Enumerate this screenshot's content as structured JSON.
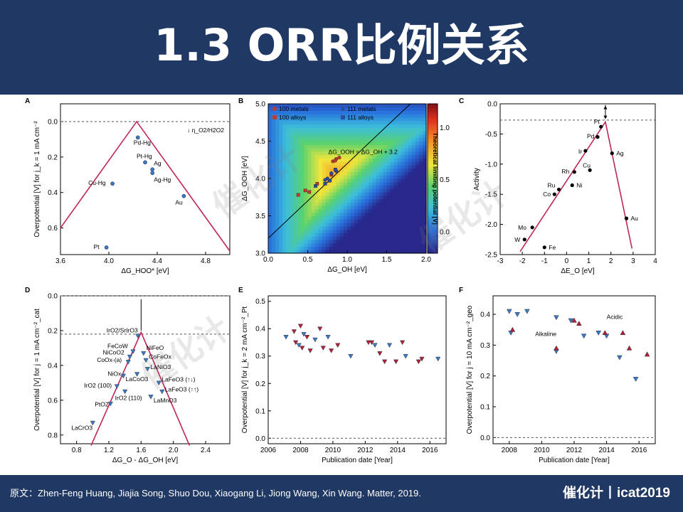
{
  "slide": {
    "title": "1.3 ORR比例关系",
    "footer_source": "原文：Zhen-Feng Huang, Jiajia Song, Shuo Dou, Xiaogang Li, Jiong Wang, Xin Wang. Matter, 2019.",
    "footer_brand": "催化计丨icat2019",
    "watermark": "催化计",
    "colors": {
      "header_bg": "#1f3864",
      "volcano_line": "#c0245a",
      "marker_blue": "#3a78c9",
      "marker_red": "#b0203a"
    }
  },
  "chart_data": [
    {
      "panel": "A",
      "type": "scatter",
      "xlabel": "ΔG_HOO* [eV]",
      "ylabel": "Overpotential [V] for j_k = 1 mA cm⁻²",
      "xlim": [
        3.6,
        5.0
      ],
      "ylim": [
        0.75,
        -0.1
      ],
      "y_inverted": true,
      "xticks": [
        "3.6",
        "4.0",
        "4.4",
        "4.8"
      ],
      "yticks": [
        "0.0",
        "0.2",
        "0.4",
        "0.6"
      ],
      "volcano": [
        [
          3.6,
          0.6
        ],
        [
          4.23,
          0.0
        ],
        [
          5.0,
          0.73
        ]
      ],
      "dashed_y": 0.0,
      "arrow_label": "η_O2/H2O2",
      "points": [
        {
          "label": "Pd-Hg",
          "x": 4.24,
          "y": 0.09
        },
        {
          "label": "Pt-Hg",
          "x": 4.3,
          "y": 0.23
        },
        {
          "label": "Ag",
          "x": 4.36,
          "y": 0.27
        },
        {
          "label": "Ag-Hg",
          "x": 4.36,
          "y": 0.29
        },
        {
          "label": "Cu-Hg",
          "x": 4.03,
          "y": 0.35
        },
        {
          "label": "Au",
          "x": 4.62,
          "y": 0.42
        },
        {
          "label": "Pt",
          "x": 3.98,
          "y": 0.71
        }
      ]
    },
    {
      "panel": "B",
      "type": "heatmap",
      "xlabel": "ΔG_OH [eV]",
      "ylabel": "ΔG_OOH [eV]",
      "xlim": [
        0.0,
        2.0
      ],
      "ylim": [
        3.0,
        5.0
      ],
      "xticks": [
        "0.0",
        "0.5",
        "1.0",
        "1.5",
        "2.0"
      ],
      "yticks": [
        "3.0",
        "3.5",
        "4.0",
        "4.5",
        "5.0"
      ],
      "colorbar_label": "Theoretical limiting potential [V]",
      "colorbar_range": [
        -0.2,
        1.23
      ],
      "colorbar_ticks": [
        "0.0",
        "0.5",
        "1.0"
      ],
      "scaling_line_label": "ΔG_OOH = ΔG_OH + 3.2",
      "scaling_intercept": 3.2,
      "legend": [
        {
          "name": "100 metals",
          "shape": "circle",
          "color": "#c0392b"
        },
        {
          "name": "100 alloys",
          "shape": "square",
          "color": "#c0392b"
        },
        {
          "name": "111 metals",
          "shape": "circle",
          "color": "#2c4ea0"
        },
        {
          "name": "111 alloys",
          "shape": "square",
          "color": "#2c4ea0"
        }
      ],
      "series": [
        {
          "name": "100 metals",
          "points": [
            [
              0.82,
              4.23
            ],
            [
              0.86,
              4.26
            ],
            [
              0.9,
              4.28
            ],
            [
              0.85,
              4.24
            ]
          ]
        },
        {
          "name": "100 alloys",
          "points": [
            [
              0.38,
              3.78
            ],
            [
              0.47,
              3.84
            ],
            [
              0.52,
              3.82
            ],
            [
              0.62,
              3.93
            ],
            [
              0.8,
              4.05
            ]
          ]
        },
        {
          "name": "111 metals",
          "points": [
            [
              0.75,
              4.0
            ],
            [
              0.8,
              4.07
            ],
            [
              0.86,
              4.1
            ],
            [
              0.72,
              3.98
            ]
          ]
        },
        {
          "name": "111 alloys",
          "points": [
            [
              0.6,
              3.9
            ],
            [
              0.72,
              3.93
            ],
            [
              0.78,
              3.97
            ],
            [
              0.85,
              4.12
            ]
          ]
        }
      ]
    },
    {
      "panel": "C",
      "type": "scatter",
      "xlabel": "ΔE_O [eV]",
      "ylabel": "Activity",
      "xlim": [
        -3,
        4
      ],
      "ylim": [
        -2.5,
        0.0
      ],
      "xticks": [
        "-3",
        "-2",
        "-1",
        "0",
        "1",
        "2",
        "3",
        "4"
      ],
      "yticks": [
        "0.0",
        "-0.5",
        "-1.0",
        "-1.5",
        "-2.0",
        "-2.5"
      ],
      "volcano": [
        [
          -2.1,
          -2.45
        ],
        [
          1.75,
          -0.3
        ],
        [
          2.95,
          -2.4
        ]
      ],
      "dashed_y": -0.27,
      "points": [
        {
          "label": "Pt",
          "x": 1.55,
          "y": -0.38
        },
        {
          "label": "Pd",
          "x": 1.4,
          "y": -0.55
        },
        {
          "label": "Ir",
          "x": 0.85,
          "y": -0.78
        },
        {
          "label": "Ag",
          "x": 2.05,
          "y": -0.82
        },
        {
          "label": "Cu",
          "x": 1.05,
          "y": -1.1
        },
        {
          "label": "Rh",
          "x": 0.35,
          "y": -1.13
        },
        {
          "label": "Ni",
          "x": 0.25,
          "y": -1.35
        },
        {
          "label": "Ru",
          "x": -0.35,
          "y": -1.42
        },
        {
          "label": "Co",
          "x": -0.55,
          "y": -1.5
        },
        {
          "label": "Au",
          "x": 2.7,
          "y": -1.9
        },
        {
          "label": "Mo",
          "x": -1.55,
          "y": -2.05
        },
        {
          "label": "W",
          "x": -1.9,
          "y": -2.25
        },
        {
          "label": "Fe",
          "x": -1.0,
          "y": -2.38
        }
      ]
    },
    {
      "panel": "D",
      "type": "scatter",
      "xlabel": "ΔG_O - ΔG_OH [eV]",
      "ylabel": "Overpotential [V] for j = 1 mA cm⁻²_cat",
      "xlim": [
        0.6,
        2.7
      ],
      "ylim": [
        0.85,
        0.0
      ],
      "y_inverted": true,
      "xticks": [
        "0.8",
        "1.2",
        "1.6",
        "2.0",
        "2.4"
      ],
      "yticks": [
        "0.0",
        "0.2",
        "0.4",
        "0.6",
        "0.8"
      ],
      "volcano": [
        [
          0.98,
          0.86
        ],
        [
          1.6,
          0.21
        ],
        [
          2.2,
          0.86
        ]
      ],
      "dashed_y": [
        0.0,
        0.22
      ],
      "points": [
        {
          "label": "IrO2/SrIrO3",
          "x": 1.56,
          "y": 0.23
        },
        {
          "label": "FeCoW",
          "x": 1.5,
          "y": 0.32
        },
        {
          "label": "NiCoO2",
          "x": 1.46,
          "y": 0.35
        },
        {
          "label": "CoOx-(a)",
          "x": 1.44,
          "y": 0.38
        },
        {
          "label": "NiFeO",
          "x": 1.63,
          "y": 0.33
        },
        {
          "label": "CoFeOx",
          "x": 1.66,
          "y": 0.37
        },
        {
          "label": "LaNiO3",
          "x": 1.68,
          "y": 0.42
        },
        {
          "label": "NiOx",
          "x": 1.38,
          "y": 0.46
        },
        {
          "label": "LaCoO3",
          "x": 1.55,
          "y": 0.45
        },
        {
          "label": "LaFeO3 (↑↓)",
          "x": 1.82,
          "y": 0.5
        },
        {
          "label": "IrO2 (100)",
          "x": 1.3,
          "y": 0.52
        },
        {
          "label": "LaFeO3 (↑↑)",
          "x": 1.86,
          "y": 0.55
        },
        {
          "label": "IrO2 (110)",
          "x": 1.4,
          "y": 0.55
        },
        {
          "label": "LaMnO3",
          "x": 1.72,
          "y": 0.58
        },
        {
          "label": "PtO2",
          "x": 1.22,
          "y": 0.62
        },
        {
          "label": "LaCrO3",
          "x": 1.0,
          "y": 0.73
        }
      ]
    },
    {
      "panel": "E",
      "type": "scatter",
      "xlabel": "Publication date [Year]",
      "ylabel": "Overpotential [V] for j_k = 2 mA cm⁻²_Pt",
      "xlim": [
        2006,
        2017
      ],
      "ylim": [
        -0.02,
        0.52
      ],
      "xticks": [
        "2006",
        "2008",
        "2010",
        "2012",
        "2014",
        "2016"
      ],
      "yticks": [
        "0.0",
        "0.1",
        "0.2",
        "0.3",
        "0.4",
        "0.5"
      ],
      "dashed_y": 0.0,
      "points": [
        [
          2007.1,
          0.37
        ],
        [
          2007.6,
          0.39
        ],
        [
          2007.7,
          0.35
        ],
        [
          2007.9,
          0.34
        ],
        [
          2008.0,
          0.41
        ],
        [
          2008.1,
          0.33
        ],
        [
          2008.2,
          0.38
        ],
        [
          2008.4,
          0.37
        ],
        [
          2008.6,
          0.32
        ],
        [
          2008.9,
          0.36
        ],
        [
          2009.2,
          0.4
        ],
        [
          2009.4,
          0.33
        ],
        [
          2009.7,
          0.37
        ],
        [
          2009.9,
          0.32
        ],
        [
          2010.3,
          0.34
        ],
        [
          2011.1,
          0.3
        ],
        [
          2012.2,
          0.35
        ],
        [
          2012.4,
          0.35
        ],
        [
          2012.6,
          0.34
        ],
        [
          2012.9,
          0.31
        ],
        [
          2013.2,
          0.28
        ],
        [
          2013.5,
          0.34
        ],
        [
          2013.9,
          0.28
        ],
        [
          2014.3,
          0.35
        ],
        [
          2014.5,
          0.3
        ],
        [
          2015.3,
          0.28
        ],
        [
          2015.5,
          0.29
        ],
        [
          2016.5,
          0.29
        ]
      ]
    },
    {
      "panel": "F",
      "type": "scatter",
      "xlabel": "Publication date [Year]",
      "ylabel": "Overpotential [V] for j = 10 mA cm⁻²_geo",
      "xlim": [
        2007,
        2017
      ],
      "ylim": [
        -0.02,
        0.46
      ],
      "xticks": [
        "2008",
        "2010",
        "2012",
        "2014",
        "2016"
      ],
      "yticks": [
        "0.0",
        "0.1",
        "0.2",
        "0.3",
        "0.4"
      ],
      "dashed_y": 0.0,
      "series": [
        {
          "name": "Alkaline",
          "color": "#3a78c9",
          "points": [
            [
              2008.0,
              0.41
            ],
            [
              2008.1,
              0.34
            ],
            [
              2008.5,
              0.4
            ],
            [
              2009.1,
              0.41
            ],
            [
              2010.9,
              0.39
            ],
            [
              2010.9,
              0.28
            ],
            [
              2011.8,
              0.38
            ],
            [
              2012.6,
              0.33
            ],
            [
              2013.5,
              0.34
            ],
            [
              2014.0,
              0.33
            ],
            [
              2014.8,
              0.26
            ],
            [
              2015.8,
              0.19
            ]
          ]
        },
        {
          "name": "Acidic",
          "color": "#b0203a",
          "points": [
            [
              2008.2,
              0.35
            ],
            [
              2010.9,
              0.29
            ],
            [
              2012.3,
              0.37
            ],
            [
              2013.9,
              0.34
            ],
            [
              2015.0,
              0.34
            ],
            [
              2015.4,
              0.29
            ],
            [
              2016.5,
              0.27
            ],
            [
              2012.0,
              0.38
            ]
          ]
        }
      ]
    }
  ]
}
